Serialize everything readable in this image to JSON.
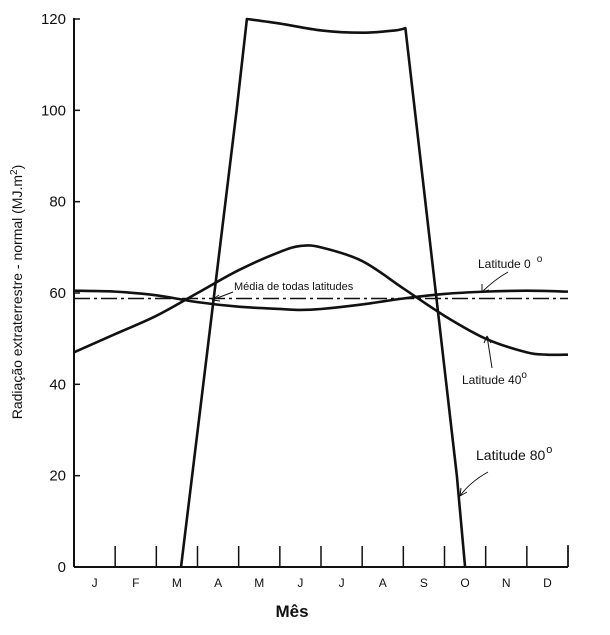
{
  "chart_data": {
    "type": "line",
    "xlabel": "Mês",
    "ylabel": "Radiação extraterrestre - normal (MJ.m",
    "ylabel_sup": "2",
    "ylabel_end": ")",
    "months": [
      "J",
      "F",
      "M",
      "A",
      "M",
      "J",
      "J",
      "A",
      "S",
      "O",
      "N",
      "D"
    ],
    "ylim": [
      0,
      120
    ],
    "yticks": [
      0,
      20,
      40,
      60,
      80,
      100,
      120
    ],
    "grid": false,
    "series": [
      {
        "name": "Latitude 80°",
        "x": [
          2.6,
          3.95,
          4.2,
          5.0,
          6.0,
          7.0,
          7.8,
          8.05,
          9.3,
          9.5
        ],
        "y": [
          0,
          100,
          120,
          119,
          117.5,
          117,
          117.5,
          118,
          20,
          0
        ]
      },
      {
        "name": "Latitude 40°",
        "x": [
          0.0,
          1.0,
          2.0,
          3.0,
          4.0,
          5.0,
          5.5,
          6.0,
          7.0,
          8.0,
          9.0,
          10.0,
          11.0,
          11.5,
          12.0
        ],
        "y": [
          47,
          51,
          55,
          60,
          65,
          69,
          70.3,
          70,
          67,
          61,
          55,
          50,
          47,
          46.5,
          46.5
        ]
      },
      {
        "name": "Latitude 0°",
        "x": [
          0.0,
          1.0,
          2.0,
          3.0,
          4.0,
          5.0,
          5.5,
          6.0,
          7.0,
          8.0,
          9.0,
          10.0,
          11.0,
          12.0
        ],
        "y": [
          60.5,
          60.3,
          59.5,
          58,
          57,
          56.5,
          56.3,
          56.5,
          57.5,
          58.8,
          59.8,
          60.3,
          60.5,
          60.3
        ]
      },
      {
        "name": "Média de todas latitudes",
        "x": [
          0,
          12
        ],
        "y": [
          58.8,
          58.8
        ]
      }
    ],
    "annotations": [
      {
        "text_main": "Latitude 0",
        "text_sup": "o",
        "series": "Latitude 0°"
      },
      {
        "text_main": "Latitude 40",
        "text_sup": "o",
        "series": "Latitude 40°"
      },
      {
        "text_main": "Latitude 80",
        "text_sup": "o",
        "series": "Latitude 80°"
      },
      {
        "text_main": "Média de todas latitudes",
        "text_sup": "",
        "series": "Média de todas latitudes"
      }
    ]
  }
}
